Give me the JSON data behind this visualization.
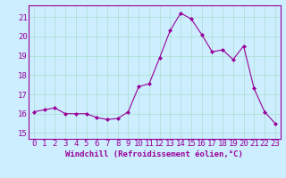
{
  "x": [
    0,
    1,
    2,
    3,
    4,
    5,
    6,
    7,
    8,
    9,
    10,
    11,
    12,
    13,
    14,
    15,
    16,
    17,
    18,
    19,
    20,
    21,
    22,
    23
  ],
  "y": [
    16.1,
    16.2,
    16.3,
    16.0,
    16.0,
    16.0,
    15.8,
    15.7,
    15.75,
    16.1,
    17.4,
    17.55,
    18.9,
    20.3,
    21.2,
    20.9,
    20.1,
    19.2,
    19.3,
    18.8,
    19.5,
    17.3,
    16.1,
    15.5
  ],
  "line_color": "#990099",
  "marker_color": "#990099",
  "bg_color": "#cceeff",
  "grid_color": "#aaddcc",
  "xlabel": "Windchill (Refroidissement éolien,°C)",
  "ylabel_ticks": [
    15,
    16,
    17,
    18,
    19,
    20,
    21
  ],
  "xlim": [
    -0.5,
    23.5
  ],
  "ylim": [
    14.7,
    21.6
  ],
  "xticks": [
    0,
    1,
    2,
    3,
    4,
    5,
    6,
    7,
    8,
    9,
    10,
    11,
    12,
    13,
    14,
    15,
    16,
    17,
    18,
    19,
    20,
    21,
    22,
    23
  ],
  "xlabel_fontsize": 6.5,
  "tick_fontsize": 6.5,
  "line_color2": "#990099",
  "axis_label_color": "#990099"
}
